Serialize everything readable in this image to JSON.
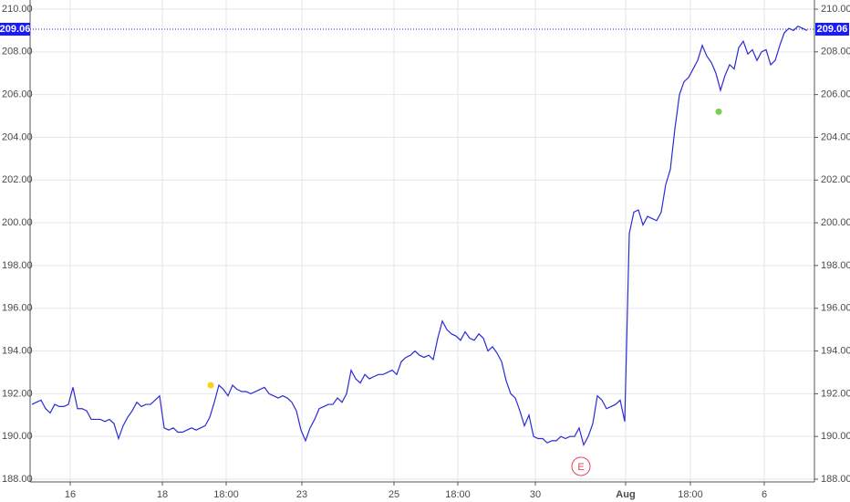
{
  "chart_data": {
    "type": "line",
    "color": "#2b2bd6",
    "values": [
      191.5,
      191.6,
      191.7,
      191.3,
      191.1,
      191.5,
      191.4,
      191.4,
      191.5,
      192.3,
      191.3,
      191.3,
      191.2,
      190.8,
      190.8,
      190.8,
      190.7,
      190.8,
      190.6,
      189.9,
      190.5,
      190.9,
      191.2,
      191.6,
      191.4,
      191.5,
      191.5,
      191.7,
      191.9,
      190.4,
      190.3,
      190.4,
      190.2,
      190.2,
      190.3,
      190.4,
      190.3,
      190.4,
      190.5,
      190.9,
      191.6,
      192.4,
      192.2,
      191.9,
      192.4,
      192.2,
      192.1,
      192.1,
      192.0,
      192.1,
      192.2,
      192.3,
      192.0,
      191.9,
      191.8,
      191.9,
      191.8,
      191.6,
      191.2,
      190.3,
      189.8,
      190.4,
      190.8,
      191.3,
      191.4,
      191.5,
      191.5,
      191.8,
      191.6,
      192.0,
      193.1,
      192.7,
      192.5,
      192.9,
      192.7,
      192.8,
      192.9,
      192.9,
      193.0,
      193.1,
      192.9,
      193.5,
      193.7,
      193.8,
      194.0,
      193.8,
      193.7,
      193.8,
      193.6,
      194.6,
      195.4,
      195.0,
      194.8,
      194.7,
      194.5,
      194.9,
      194.6,
      194.5,
      194.8,
      194.6,
      194.0,
      194.2,
      193.9,
      193.5,
      192.6,
      192.0,
      191.8,
      191.2,
      190.5,
      191.0,
      190.0,
      189.9,
      189.9,
      189.7,
      189.8,
      189.8,
      190.0,
      189.9,
      190.0,
      190.0,
      190.4,
      189.6,
      190.0,
      190.6,
      191.9,
      191.7,
      191.3,
      191.4,
      191.5,
      191.7,
      190.7,
      199.5,
      200.5,
      200.6,
      199.9,
      200.3,
      200.2,
      200.1,
      200.5,
      201.8,
      202.5,
      204.4,
      206.0,
      206.6,
      206.8,
      207.2,
      207.6,
      208.3,
      207.8,
      207.5,
      207.0,
      206.2,
      206.9,
      207.4,
      207.2,
      208.2,
      208.5,
      207.9,
      208.1,
      207.6,
      208.0,
      208.1,
      207.4,
      207.6,
      208.3,
      208.9,
      209.1,
      209.0,
      209.2,
      209.1,
      209.0
    ],
    "xlim": [
      0,
      170
    ],
    "xticks": [
      {
        "value": 8.4,
        "label": "16"
      },
      {
        "value": 28.6,
        "label": "18"
      },
      {
        "value": 42.6,
        "label": "18:00"
      },
      {
        "value": 59.2,
        "label": "23"
      },
      {
        "value": 79.4,
        "label": "25"
      },
      {
        "value": 93.4,
        "label": "18:00"
      },
      {
        "value": 110.4,
        "label": "30"
      },
      {
        "value": 130.2,
        "label": "Aug"
      },
      {
        "value": 144.4,
        "label": "18:00"
      },
      {
        "value": 160.6,
        "label": "6"
      }
    ],
    "ylim": [
      188,
      210
    ],
    "yticks": [
      {
        "value": 188,
        "label": "188.00"
      },
      {
        "value": 190,
        "label": "190.00"
      },
      {
        "value": 192,
        "label": "192.00"
      },
      {
        "value": 194,
        "label": "194.00"
      },
      {
        "value": 196,
        "label": "196.00"
      },
      {
        "value": 198,
        "label": "198.00"
      },
      {
        "value": 200,
        "label": "200.00"
      },
      {
        "value": 202,
        "label": "202.00"
      },
      {
        "value": 204,
        "label": "204.00"
      },
      {
        "value": 206,
        "label": "206.00"
      },
      {
        "value": 208,
        "label": "208.00"
      },
      {
        "value": 210,
        "label": "210.00"
      }
    ],
    "grid": true,
    "last_price": 209.06,
    "last_price_color": "#1a1aff",
    "markers": [
      {
        "x": 39.2,
        "y": 192.4,
        "color": "#f2d21b"
      },
      {
        "x": 150.6,
        "y": 205.2,
        "color": "#7ccf4a"
      }
    ],
    "events": [
      {
        "x": 120.4,
        "y": 188.6,
        "label": "E",
        "color": "#e0435a"
      }
    ]
  }
}
